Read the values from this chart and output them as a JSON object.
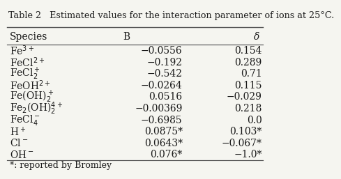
{
  "title": "Table 2   Estimated values for the interaction parameter of ions at 25°C.",
  "headers": [
    "Species",
    "B",
    "δ"
  ],
  "rows": [
    [
      "Fe$^{3+}$",
      "−0.0556",
      "0.154"
    ],
    [
      "FeCl$^{2+}$",
      "−0.192",
      "0.289"
    ],
    [
      "FeCl$_2^+$",
      "−0.542",
      "0.71"
    ],
    [
      "FeOH$^{2+}$",
      "−0.0264",
      "0.115"
    ],
    [
      "Fe(OH)$_2^+$",
      "0.0516",
      "−0.029"
    ],
    [
      "Fe$_2$(OH)$_2^{4+}$",
      "−0.00369",
      "0.218"
    ],
    [
      "FeCl$_4^-$",
      "−0.6985",
      "0.0"
    ],
    [
      "H$^+$",
      "0.0875*",
      "0.103*"
    ],
    [
      "Cl$^-$",
      "0.0643*",
      "−0.067*"
    ],
    [
      "OH$^-$",
      "0.076*",
      "−1.0*"
    ]
  ],
  "footnote": "*: reported by Bromley",
  "bg_color": "#f5f5f0",
  "text_color": "#1a1a1a",
  "header_line_color": "#555555",
  "title_fontsize": 9.2,
  "header_fontsize": 10,
  "cell_fontsize": 10,
  "footnote_fontsize": 9
}
